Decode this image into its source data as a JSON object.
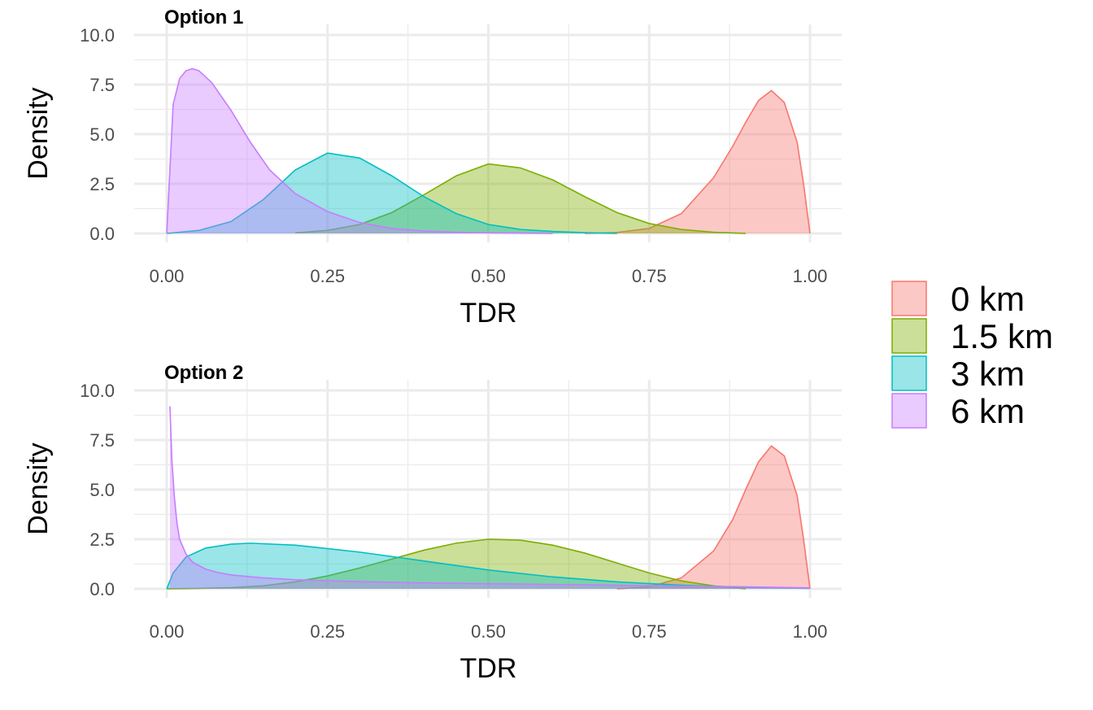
{
  "chart_data": [
    {
      "type": "area",
      "title": "Option 1",
      "xlabel": "TDR",
      "ylabel": "Density",
      "xlim": [
        0,
        1
      ],
      "ylim": [
        0,
        10
      ],
      "x_ticks": [
        "0.00",
        "0.25",
        "0.50",
        "0.75",
        "1.00"
      ],
      "y_ticks": [
        "0.0",
        "2.5",
        "5.0",
        "7.5",
        "10.0"
      ],
      "grid": true,
      "series": [
        {
          "name": "0 km",
          "color": "#F8766D",
          "x": [
            0.65,
            0.7,
            0.75,
            0.8,
            0.85,
            0.88,
            0.9,
            0.92,
            0.94,
            0.96,
            0.98,
            0.99,
            1.0
          ],
          "y": [
            0.0,
            0.05,
            0.25,
            1.0,
            2.8,
            4.4,
            5.6,
            6.7,
            7.2,
            6.6,
            4.6,
            2.5,
            0.0
          ]
        },
        {
          "name": "1.5 km",
          "color": "#7CAE00",
          "x": [
            0.2,
            0.25,
            0.3,
            0.35,
            0.4,
            0.45,
            0.5,
            0.55,
            0.6,
            0.65,
            0.7,
            0.75,
            0.8,
            0.85,
            0.9
          ],
          "y": [
            0.03,
            0.15,
            0.45,
            1.05,
            1.95,
            2.9,
            3.5,
            3.3,
            2.7,
            1.85,
            1.05,
            0.5,
            0.2,
            0.06,
            0.0
          ]
        },
        {
          "name": "3 km",
          "color": "#00BFC4",
          "x": [
            0.0,
            0.05,
            0.1,
            0.15,
            0.2,
            0.25,
            0.3,
            0.35,
            0.4,
            0.45,
            0.5,
            0.55,
            0.6,
            0.65,
            0.7
          ],
          "y": [
            0.0,
            0.15,
            0.6,
            1.7,
            3.2,
            4.05,
            3.8,
            2.9,
            1.85,
            1.0,
            0.45,
            0.2,
            0.1,
            0.04,
            0.0
          ]
        },
        {
          "name": "6 km",
          "color": "#C77CFF",
          "x": [
            0.0,
            0.01,
            0.02,
            0.03,
            0.04,
            0.05,
            0.07,
            0.1,
            0.13,
            0.16,
            0.2,
            0.25,
            0.3,
            0.35,
            0.4,
            0.45,
            0.5,
            0.6
          ],
          "y": [
            0.0,
            6.5,
            7.8,
            8.2,
            8.3,
            8.2,
            7.6,
            6.2,
            4.6,
            3.2,
            2.0,
            1.1,
            0.55,
            0.25,
            0.12,
            0.06,
            0.03,
            0.0
          ]
        }
      ]
    },
    {
      "type": "area",
      "title": "Option 2",
      "xlabel": "TDR",
      "ylabel": "Density",
      "xlim": [
        0,
        1
      ],
      "ylim": [
        0,
        10
      ],
      "x_ticks": [
        "0.00",
        "0.25",
        "0.50",
        "0.75",
        "1.00"
      ],
      "y_ticks": [
        "0.0",
        "2.5",
        "5.0",
        "7.5",
        "10.0"
      ],
      "grid": true,
      "series": [
        {
          "name": "0 km",
          "color": "#F8766D",
          "x": [
            0.7,
            0.75,
            0.8,
            0.85,
            0.88,
            0.9,
            0.92,
            0.94,
            0.96,
            0.98,
            0.99,
            1.0
          ],
          "y": [
            0.0,
            0.1,
            0.55,
            1.9,
            3.5,
            5.0,
            6.4,
            7.2,
            6.7,
            4.7,
            2.5,
            0.0
          ]
        },
        {
          "name": "1.5 km",
          "color": "#7CAE00",
          "x": [
            0.0,
            0.05,
            0.1,
            0.15,
            0.2,
            0.25,
            0.3,
            0.35,
            0.4,
            0.45,
            0.5,
            0.55,
            0.6,
            0.65,
            0.7,
            0.75,
            0.8,
            0.85,
            0.9
          ],
          "y": [
            0.0,
            0.02,
            0.06,
            0.15,
            0.35,
            0.65,
            1.05,
            1.5,
            1.95,
            2.3,
            2.5,
            2.45,
            2.2,
            1.8,
            1.3,
            0.8,
            0.4,
            0.15,
            0.0
          ]
        },
        {
          "name": "3 km",
          "color": "#00BFC4",
          "x": [
            0.0,
            0.01,
            0.03,
            0.06,
            0.1,
            0.13,
            0.2,
            0.3,
            0.4,
            0.5,
            0.6,
            0.7,
            0.8,
            0.9,
            1.0
          ],
          "y": [
            0.0,
            0.8,
            1.6,
            2.05,
            2.25,
            2.3,
            2.2,
            1.85,
            1.4,
            0.95,
            0.6,
            0.35,
            0.18,
            0.08,
            0.02
          ]
        },
        {
          "name": "6 km",
          "color": "#C77CFF",
          "x": [
            0.005,
            0.008,
            0.012,
            0.016,
            0.02,
            0.03,
            0.04,
            0.06,
            0.08,
            0.1,
            0.15,
            0.2,
            0.3,
            0.4,
            0.5,
            0.6,
            0.7,
            0.8,
            0.9,
            1.0
          ],
          "y": [
            9.2,
            6.5,
            4.6,
            3.3,
            2.5,
            1.75,
            1.35,
            1.0,
            0.82,
            0.7,
            0.55,
            0.46,
            0.36,
            0.3,
            0.26,
            0.22,
            0.18,
            0.14,
            0.1,
            0.05
          ]
        }
      ]
    }
  ],
  "legend": {
    "position": "right",
    "items": [
      {
        "label": "0 km",
        "color": "#F8766D"
      },
      {
        "label": "1.5 km",
        "color": "#7CAE00"
      },
      {
        "label": "3 km",
        "color": "#00BFC4"
      },
      {
        "label": "6 km",
        "color": "#C77CFF"
      }
    ]
  }
}
